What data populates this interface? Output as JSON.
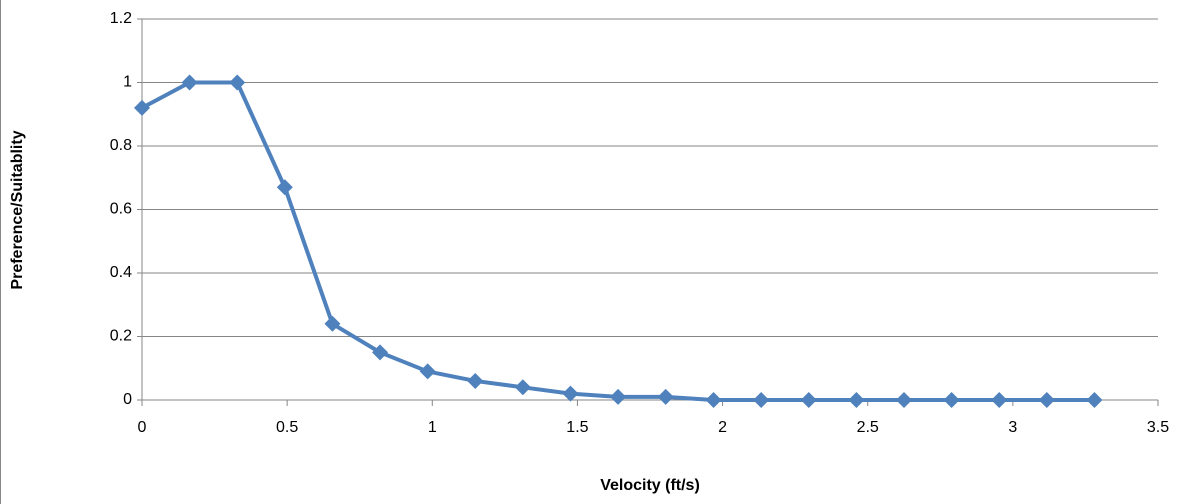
{
  "chart_data": {
    "type": "line",
    "x_label": "Velocity (ft/s)",
    "y_label": "Preference/Suitablity",
    "x": [
      0,
      0.164,
      0.328,
      0.492,
      0.656,
      0.82,
      0.984,
      1.148,
      1.312,
      1.476,
      1.64,
      1.804,
      1.969,
      2.133,
      2.297,
      2.461,
      2.625,
      2.789,
      2.953,
      3.117,
      3.281
    ],
    "values": [
      0.92,
      1,
      1,
      0.67,
      0.24,
      0.15,
      0.09,
      0.06,
      0.04,
      0.02,
      0.01,
      0.01,
      0,
      0,
      0,
      0,
      0,
      0,
      0,
      0,
      0
    ],
    "color": "#4f81bd",
    "xlim": [
      0,
      3.5
    ],
    "xticks": [
      0,
      0.5,
      1,
      1.5,
      2,
      2.5,
      3,
      3.5
    ],
    "ylim": [
      0,
      1.2
    ],
    "yticks": [
      0,
      0.2,
      0.4,
      0.6,
      0.8,
      1,
      1.2
    ],
    "grid": true
  }
}
